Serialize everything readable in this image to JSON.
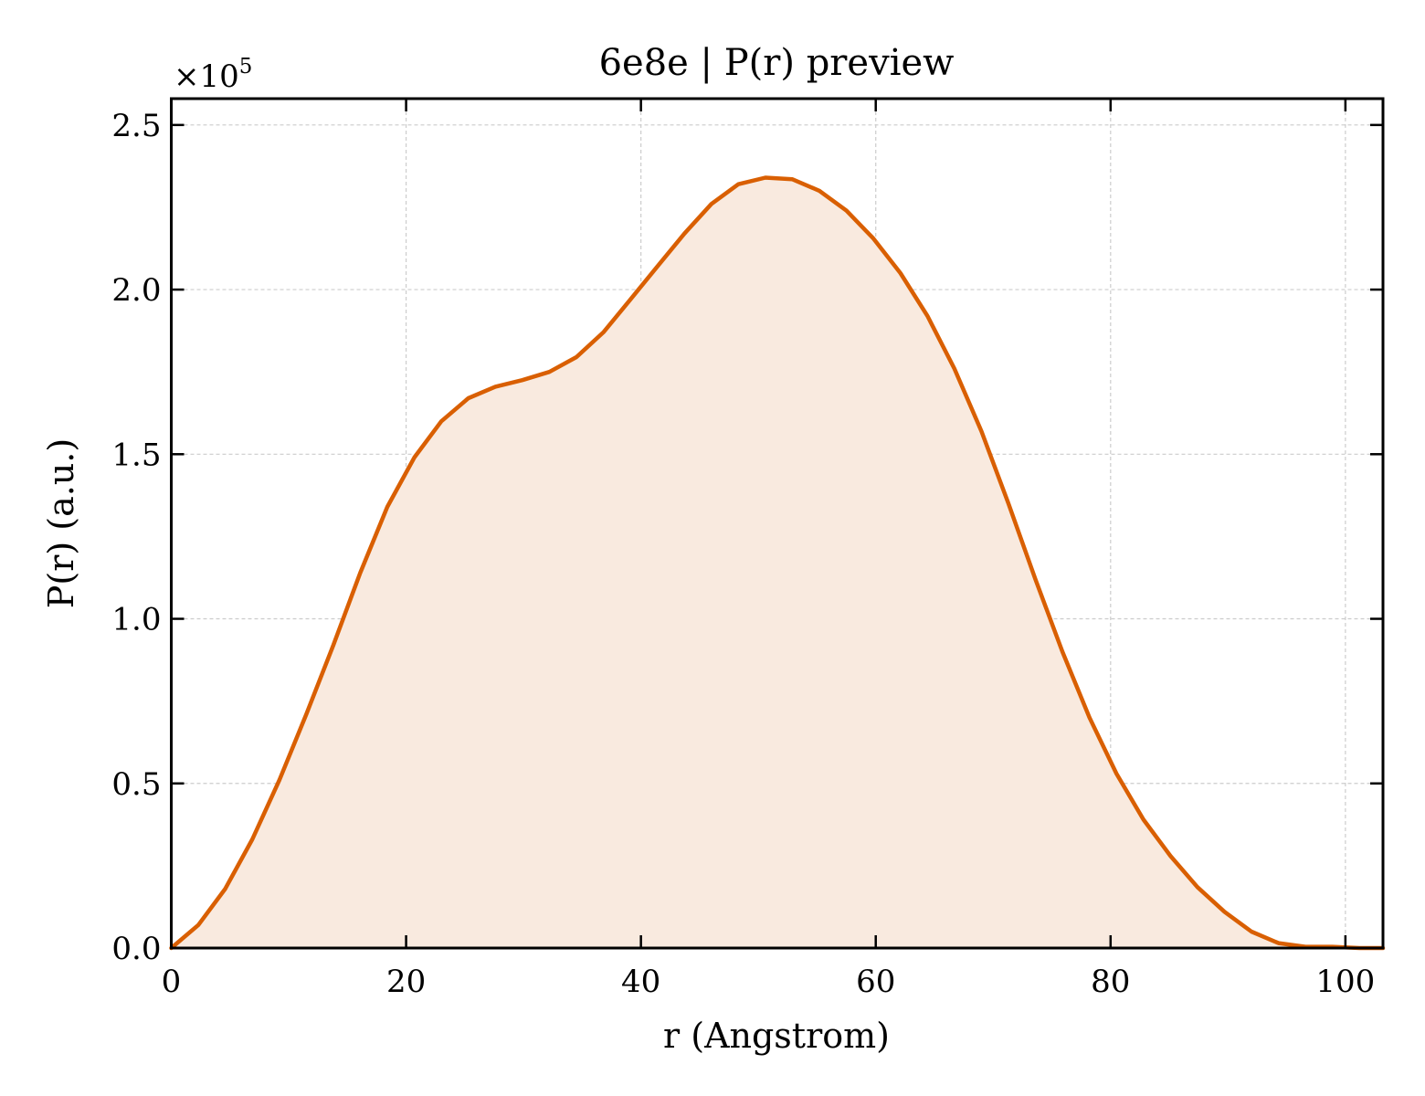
{
  "chart_data": {
    "type": "area",
    "title": "6e8e | P(r) preview",
    "xlabel": "r (Angstrom)",
    "ylabel": "P(r) (a.u.)",
    "y_multiplier_label": "×10",
    "y_multiplier_exponent": "5",
    "xlim": [
      0,
      103.2
    ],
    "ylim": [
      0,
      2.58
    ],
    "y_scale_factor": 100000,
    "x_ticks": [
      0,
      20,
      40,
      60,
      80,
      100
    ],
    "x_tick_labels": [
      "0",
      "20",
      "40",
      "60",
      "80",
      "100"
    ],
    "y_ticks": [
      0,
      0.5,
      1.0,
      1.5,
      2.0,
      2.5
    ],
    "y_tick_labels": [
      "0.0",
      "0.5",
      "1.0",
      "1.5",
      "2.0",
      "2.5"
    ],
    "grid": true,
    "line_color": "#d95f02",
    "fill_color": "#f9eadf",
    "series": [
      {
        "x": [
          0,
          2.3,
          4.6,
          6.9,
          9.2,
          11.5,
          13.8,
          16.1,
          18.4,
          20.7,
          23.0,
          25.3,
          27.6,
          29.9,
          32.2,
          34.5,
          36.8,
          39.1,
          41.4,
          43.7,
          46.0,
          48.3,
          50.6,
          52.9,
          55.2,
          57.5,
          59.8,
          62.1,
          64.4,
          66.7,
          69.0,
          71.3,
          73.6,
          75.9,
          78.2,
          80.5,
          82.8,
          85.1,
          87.4,
          89.7,
          92.0,
          94.3,
          96.6,
          98.9,
          101.2,
          103.2
        ],
        "values": [
          0.0,
          0.07,
          0.18,
          0.33,
          0.51,
          0.71,
          0.92,
          1.14,
          1.34,
          1.49,
          1.6,
          1.67,
          1.705,
          1.725,
          1.75,
          1.795,
          1.87,
          1.97,
          2.07,
          2.17,
          2.26,
          2.32,
          2.34,
          2.335,
          2.3,
          2.24,
          2.155,
          2.05,
          1.92,
          1.76,
          1.57,
          1.35,
          1.12,
          0.9,
          0.7,
          0.53,
          0.39,
          0.28,
          0.185,
          0.11,
          0.05,
          0.015,
          0.004,
          0.004,
          0.0,
          0.0
        ]
      }
    ]
  }
}
